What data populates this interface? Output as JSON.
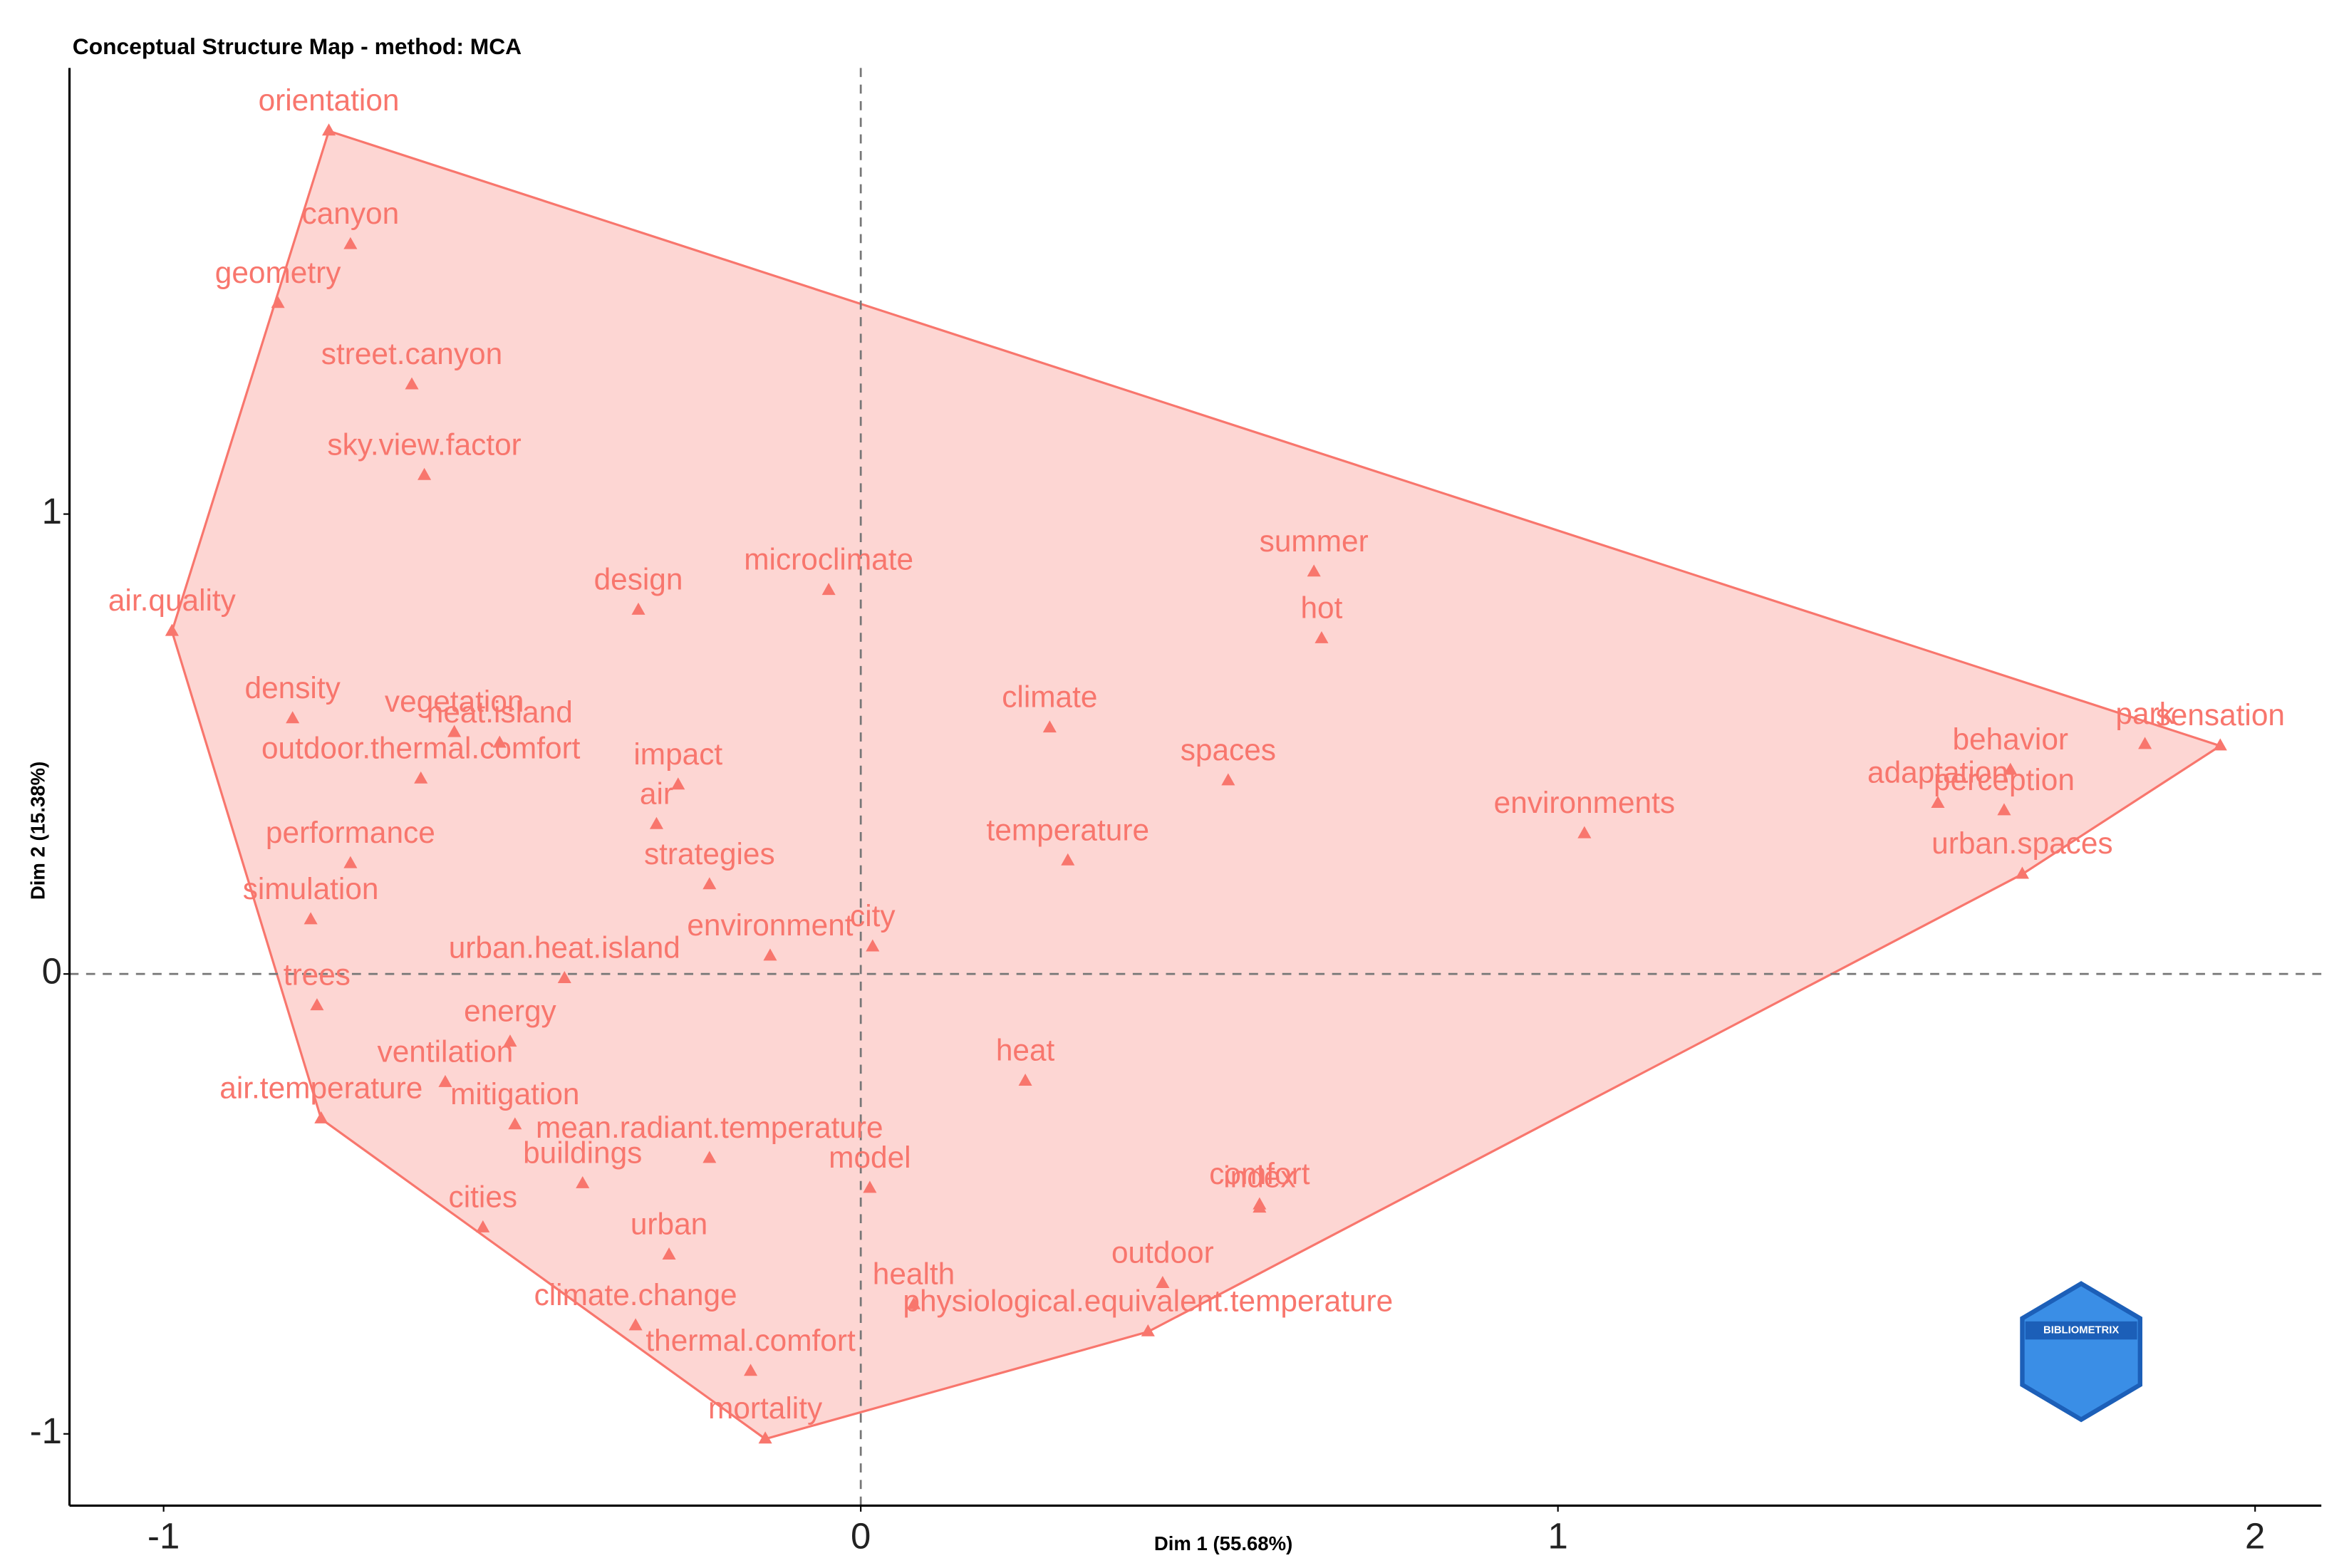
{
  "chart_data": {
    "type": "scatter",
    "title": "Conceptual Structure Map - method: MCA",
    "xlabel": "Dim 1 (55.68%)",
    "ylabel": "Dim 2 (15.38%)",
    "labels": [
      "orientation",
      "canyon",
      "geometry",
      "street.canyon",
      "sky.view.factor",
      "air.quality",
      "design",
      "microclimate",
      "summer",
      "hot",
      "density",
      "vegetation",
      "heat.island",
      "impact",
      "outdoor.thermal.comfort",
      "climate",
      "spaces",
      "environments",
      "behavior",
      "park",
      "sensation",
      "adaptation",
      "perception",
      "urban.spaces",
      "air",
      "performance",
      "simulation",
      "strategies",
      "temperature",
      "city",
      "urban.heat.island",
      "environment",
      "trees",
      "energy",
      "ventilation",
      "heat",
      "air.temperature",
      "mitigation",
      "mean.radiant.temperature",
      "buildings",
      "model",
      "comfort",
      "cities",
      "urban",
      "index",
      "health",
      "climate.change",
      "outdoor",
      "physiological.equivalent.temperature",
      "thermal.comfort",
      "mortality"
    ],
    "x": [
      -0.763,
      -0.732,
      -0.836,
      -0.644,
      -0.626,
      -0.988,
      -0.319,
      -0.046,
      0.65,
      0.661,
      -0.815,
      -0.583,
      -0.518,
      -0.262,
      -0.631,
      0.271,
      0.527,
      1.038,
      1.649,
      1.842,
      1.95,
      1.545,
      1.64,
      1.666,
      -0.293,
      -0.732,
      -0.789,
      -0.217,
      0.297,
      0.017,
      -0.425,
      -0.13,
      -0.78,
      -0.503,
      -0.596,
      0.236,
      -0.774,
      -0.496,
      -0.217,
      -0.399,
      0.013,
      0.572,
      -0.542,
      -0.275,
      0.572,
      0.076,
      -0.323,
      0.433,
      0.412,
      -0.158,
      -0.137
    ],
    "y": [
      1.833,
      1.586,
      1.458,
      1.281,
      1.084,
      0.745,
      0.791,
      0.834,
      0.874,
      0.729,
      0.555,
      0.525,
      0.502,
      0.411,
      0.424,
      0.535,
      0.42,
      0.305,
      0.443,
      0.499,
      0.496,
      0.371,
      0.355,
      0.217,
      0.325,
      0.24,
      0.118,
      0.194,
      0.246,
      0.059,
      -0.01,
      0.039,
      -0.069,
      -0.148,
      -0.236,
      -0.233,
      -0.315,
      -0.328,
      -0.401,
      -0.456,
      -0.466,
      -0.502,
      -0.552,
      -0.611,
      -0.509,
      -0.719,
      -0.765,
      -0.673,
      -0.778,
      -0.864,
      -1.011
    ],
    "color": "#f8766d",
    "hull": true,
    "xlim": [
      -1.135,
      2.095
    ],
    "ylim": [
      -1.156,
      1.97
    ],
    "xticks": [
      -1,
      0,
      1,
      2
    ],
    "yticks": [
      -1,
      0,
      1
    ],
    "logo": "BIBLIOMETRIX"
  }
}
